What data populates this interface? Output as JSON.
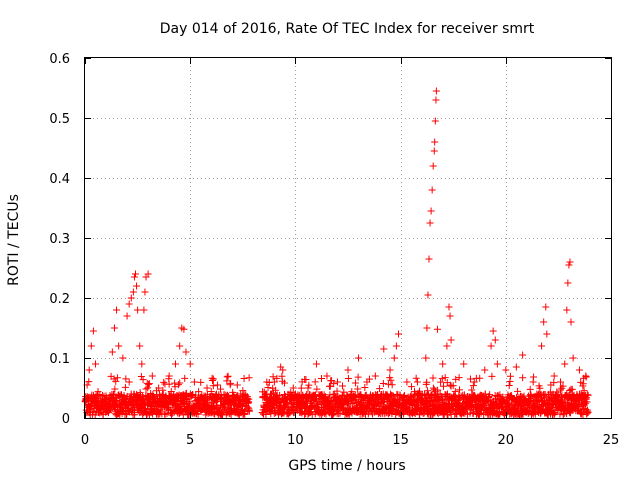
{
  "chart_data": {
    "type": "scatter",
    "title": "Day 014 of 2016, Rate Of TEC Index for receiver smrt",
    "xlabel": "GPS time / hours",
    "ylabel": "ROTI / TECUs",
    "xlim": [
      0,
      25
    ],
    "ylim": [
      0,
      0.6
    ],
    "xticks": [
      0,
      5,
      10,
      15,
      20,
      25
    ],
    "yticks": [
      0,
      0.1,
      0.2,
      0.3,
      0.4,
      0.5,
      0.6
    ],
    "xtick_labels": [
      "0",
      "5",
      "10",
      "15",
      "20",
      "25"
    ],
    "ytick_labels": [
      "0",
      "0.1",
      "0.2",
      "0.3",
      "0.4",
      "0.5",
      "0.6"
    ],
    "grid": true,
    "marker": "+",
    "color": "#ff0000",
    "series": [
      {
        "name": "ROTI",
        "data_gaps_hours": [
          [
            7.8,
            8.4
          ]
        ],
        "points": [
          [
            0.05,
            0.03
          ],
          [
            0.1,
            0.055
          ],
          [
            0.2,
            0.08
          ],
          [
            0.3,
            0.12
          ],
          [
            0.4,
            0.145
          ],
          [
            0.5,
            0.09
          ],
          [
            1.3,
            0.11
          ],
          [
            1.4,
            0.15
          ],
          [
            1.5,
            0.18
          ],
          [
            1.6,
            0.12
          ],
          [
            1.8,
            0.1
          ],
          [
            2.0,
            0.17
          ],
          [
            2.1,
            0.19
          ],
          [
            2.2,
            0.2
          ],
          [
            2.3,
            0.21
          ],
          [
            2.35,
            0.235
          ],
          [
            2.4,
            0.24
          ],
          [
            2.45,
            0.22
          ],
          [
            2.5,
            0.18
          ],
          [
            2.6,
            0.12
          ],
          [
            2.7,
            0.09
          ],
          [
            2.8,
            0.18
          ],
          [
            2.85,
            0.21
          ],
          [
            2.9,
            0.235
          ],
          [
            3.0,
            0.24
          ],
          [
            3.2,
            0.07
          ],
          [
            3.5,
            0.05
          ],
          [
            4.0,
            0.07
          ],
          [
            4.3,
            0.09
          ],
          [
            4.5,
            0.12
          ],
          [
            4.6,
            0.15
          ],
          [
            4.7,
            0.148
          ],
          [
            4.8,
            0.11
          ],
          [
            5.0,
            0.09
          ],
          [
            5.2,
            0.06
          ],
          [
            5.8,
            0.05
          ],
          [
            6.1,
            0.065
          ],
          [
            6.3,
            0.055
          ],
          [
            6.8,
            0.035
          ],
          [
            7.4,
            0.04
          ],
          [
            8.6,
            0.04
          ],
          [
            9.0,
            0.06
          ],
          [
            9.3,
            0.085
          ],
          [
            9.4,
            0.08
          ],
          [
            9.9,
            0.05
          ],
          [
            10.6,
            0.05
          ],
          [
            11.0,
            0.09
          ],
          [
            11.5,
            0.07
          ],
          [
            12.0,
            0.06
          ],
          [
            12.5,
            0.08
          ],
          [
            13.0,
            0.1
          ],
          [
            13.4,
            0.06
          ],
          [
            13.8,
            0.07
          ],
          [
            14.2,
            0.115
          ],
          [
            14.5,
            0.08
          ],
          [
            14.7,
            0.1
          ],
          [
            14.8,
            0.12
          ],
          [
            14.9,
            0.14
          ],
          [
            15.3,
            0.06
          ],
          [
            15.8,
            0.06
          ],
          [
            16.2,
            0.1
          ],
          [
            16.25,
            0.15
          ],
          [
            16.3,
            0.205
          ],
          [
            16.35,
            0.265
          ],
          [
            16.4,
            0.325
          ],
          [
            16.45,
            0.345
          ],
          [
            16.5,
            0.38
          ],
          [
            16.55,
            0.42
          ],
          [
            16.6,
            0.445
          ],
          [
            16.62,
            0.46
          ],
          [
            16.65,
            0.495
          ],
          [
            16.68,
            0.53
          ],
          [
            16.7,
            0.545
          ],
          [
            16.75,
            0.148
          ],
          [
            17.0,
            0.09
          ],
          [
            17.2,
            0.12
          ],
          [
            17.3,
            0.185
          ],
          [
            17.35,
            0.17
          ],
          [
            17.4,
            0.13
          ],
          [
            18.0,
            0.09
          ],
          [
            18.5,
            0.06
          ],
          [
            19.0,
            0.08
          ],
          [
            19.3,
            0.12
          ],
          [
            19.4,
            0.145
          ],
          [
            19.5,
            0.13
          ],
          [
            19.6,
            0.09
          ],
          [
            20.0,
            0.08
          ],
          [
            20.5,
            0.085
          ],
          [
            20.8,
            0.105
          ],
          [
            21.3,
            0.06
          ],
          [
            21.7,
            0.12
          ],
          [
            21.8,
            0.16
          ],
          [
            21.9,
            0.185
          ],
          [
            21.95,
            0.14
          ],
          [
            22.3,
            0.07
          ],
          [
            22.6,
            0.06
          ],
          [
            22.8,
            0.09
          ],
          [
            22.9,
            0.18
          ],
          [
            22.95,
            0.225
          ],
          [
            23.0,
            0.255
          ],
          [
            23.05,
            0.26
          ],
          [
            23.1,
            0.16
          ],
          [
            23.2,
            0.1
          ],
          [
            23.5,
            0.08
          ],
          [
            23.8,
            0.07
          ]
        ]
      }
    ]
  }
}
